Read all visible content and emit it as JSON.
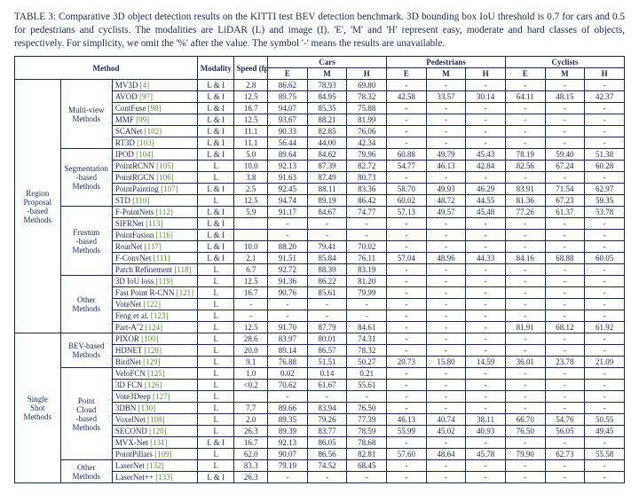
{
  "caption": "TABLE 3: Comparative 3D object detection results on the KITTI test BEV detection benchmark. 3D bounding box IoU threshold is 0.7 for cars and 0.5 for pedestrians and cyclists. The modalities are LiDAR (L) and image (I). 'E', 'M' and 'H' represent easy, moderate and hard classes of objects, respectively. For simplicity, we omit the '%' after the value. The symbol '-' means the results are unavailable.",
  "headers": {
    "method": "Method",
    "modality": "Modality",
    "speed": "Speed (fps)",
    "cars": "Cars",
    "ped": "Pedestrians",
    "cyc": "Cyclists",
    "e": "E",
    "m": "M",
    "h": "H"
  },
  "groups": [
    {
      "label": "Region Proposal -based Methods",
      "subs": [
        {
          "label": "Multi-view Methods",
          "rows": [
            {
              "name": "MV3D",
              "ref": "[4]",
              "mod": "L & I",
              "spd": "2.8",
              "cE": "86.62",
              "cM": "78.93",
              "cH": "69.80",
              "pE": "-",
              "pM": "-",
              "pH": "-",
              "yE": "-",
              "yM": "-",
              "yH": "-"
            },
            {
              "name": "AVOD",
              "ref": "[97]",
              "mod": "L & I",
              "spd": "12.5",
              "cE": "89.75",
              "cM": "84.95",
              "cH": "78.32",
              "pE": "42.58",
              "pM": "33.57",
              "pH": "30.14",
              "yE": "64.11",
              "yM": "48.15",
              "yH": "42.37"
            },
            {
              "name": "ContFuse",
              "ref": "[98]",
              "mod": "L & I",
              "spd": "16.7",
              "cE": "94.07",
              "cM": "85.35",
              "cH": "75.88",
              "pE": "-",
              "pM": "-",
              "pH": "-",
              "yE": "-",
              "yM": "-",
              "yH": "-"
            },
            {
              "name": "MMF",
              "ref": "[99]",
              "mod": "L & I",
              "spd": "12.5",
              "cE": "93.67",
              "cM": "88.21",
              "cH": "81.99",
              "pE": "-",
              "pM": "-",
              "pH": "-",
              "yE": "-",
              "yM": "-",
              "yH": "-"
            },
            {
              "name": "SCANet",
              "ref": "[102]",
              "mod": "L & I",
              "spd": "11.1",
              "cE": "90.33",
              "cM": "82.85",
              "cH": "76.06",
              "pE": "-",
              "pM": "-",
              "pH": "-",
              "yE": "-",
              "yM": "-",
              "yH": "-"
            },
            {
              "name": "RT3D",
              "ref": "[103]",
              "mod": "L & I",
              "spd": "11.1",
              "cE": "56.44",
              "cM": "44.00",
              "cH": "42.34",
              "pE": "-",
              "pM": "-",
              "pH": "-",
              "yE": "-",
              "yM": "-",
              "yH": "-"
            }
          ]
        },
        {
          "label": "Segmentation -based Methods",
          "rows": [
            {
              "name": "IPOD",
              "ref": "[104]",
              "mod": "L & I",
              "spd": "5.0",
              "cE": "89.64",
              "cM": "84.62",
              "cH": "79.96",
              "pE": "60.88",
              "pM": "49.79",
              "pH": "45.43",
              "yE": "78.19",
              "yM": "59.40",
              "yH": "51.38"
            },
            {
              "name": "PointRCNN",
              "ref": "[105]",
              "mod": "L",
              "spd": "10.0",
              "cE": "92.13",
              "cM": "87.39",
              "cH": "82.72",
              "pE": "54.77",
              "pM": "46.13",
              "pH": "42.84",
              "yE": "82.56",
              "yM": "67.24",
              "yH": "60.28"
            },
            {
              "name": "PointRGCN",
              "ref": "[106]",
              "mod": "L",
              "spd": "3.8",
              "cE": "91.63",
              "cM": "87.49",
              "cH": "80.73",
              "pE": "-",
              "pM": "-",
              "pH": "-",
              "yE": "-",
              "yM": "-",
              "yH": "-"
            },
            {
              "name": "PointPainting",
              "ref": "[107]",
              "mod": "L & I",
              "spd": "2.5",
              "cE": "92.45",
              "cM": "88.11",
              "cH": "83.36",
              "pE": "58.70",
              "pM": "49.93",
              "pH": "46.29",
              "yE": "83.91",
              "yM": "71.54",
              "yH": "62.97"
            },
            {
              "name": "STD",
              "ref": "[110]",
              "mod": "L",
              "spd": "12.5",
              "cE": "94.74",
              "cM": "89.19",
              "cH": "86.42",
              "pE": "60.02",
              "pM": "48.72",
              "pH": "44.55",
              "yE": "81.36",
              "yM": "67.23",
              "yH": "59.35"
            }
          ]
        },
        {
          "label": "Frustum -based Methods",
          "rows": [
            {
              "name": "F-PointNets",
              "ref": "[112]",
              "mod": "L & I",
              "spd": "5.9",
              "cE": "91.17",
              "cM": "84.67",
              "cH": "74.77",
              "pE": "57.13",
              "pM": "49.57",
              "pH": "45.48",
              "yE": "77.26",
              "yM": "61.37",
              "yH": "53.78"
            },
            {
              "name": "SIFRNet",
              "ref": "[113]",
              "mod": "L & I",
              "spd": "",
              "cE": "-",
              "cM": "-",
              "cH": "-",
              "pE": "-",
              "pM": "-",
              "pH": "-",
              "yE": "-",
              "yM": "-",
              "yH": "-"
            },
            {
              "name": "PointFusion",
              "ref": "[116]",
              "mod": "L & I",
              "spd": "",
              "cE": "-",
              "cM": "-",
              "cH": "-",
              "pE": "-",
              "pM": "-",
              "pH": "-",
              "yE": "-",
              "yM": "-",
              "yH": "-"
            },
            {
              "name": "RoarNet",
              "ref": "[117]",
              "mod": "L & I",
              "spd": "10.0",
              "cE": "88.20",
              "cM": "79.41",
              "cH": "70.02",
              "pE": "-",
              "pM": "-",
              "pH": "-",
              "yE": "-",
              "yM": "-",
              "yH": "-"
            },
            {
              "name": "F-ConvNet",
              "ref": "[111]",
              "mod": "L & I",
              "spd": "2.1",
              "cE": "91.51",
              "cM": "85.84",
              "cH": "76.11",
              "pE": "57.04",
              "pM": "48.96",
              "pH": "44.33",
              "yE": "84.16",
              "yM": "68.88",
              "yH": "60.05"
            },
            {
              "name": "Patch Refinement",
              "ref": "[118]",
              "mod": "L",
              "spd": "6.7",
              "cE": "92.72",
              "cM": "88.39",
              "cH": "83.19",
              "pE": "-",
              "pM": "-",
              "pH": "-",
              "yE": "-",
              "yM": "-",
              "yH": "-"
            }
          ]
        },
        {
          "label": "Other Methods",
          "rows": [
            {
              "name": "3D IoU loss",
              "ref": "[119]",
              "mod": "L",
              "spd": "12.5",
              "cE": "91.36",
              "cM": "86.22",
              "cH": "81.20",
              "pE": "-",
              "pM": "-",
              "pH": "-",
              "yE": "-",
              "yM": "-",
              "yH": "-"
            },
            {
              "name": "Fast Point R-CNN",
              "ref": "[121]",
              "mod": "L",
              "spd": "16.7",
              "cE": "90.76",
              "cM": "85.61",
              "cH": "79.99",
              "pE": "-",
              "pM": "-",
              "pH": "-",
              "yE": "-",
              "yM": "-",
              "yH": "-"
            },
            {
              "name": "VoteNet",
              "ref": "[122]",
              "mod": "L",
              "spd": "-",
              "cE": "-",
              "cM": "-",
              "cH": "-",
              "pE": "-",
              "pM": "-",
              "pH": "-",
              "yE": "-",
              "yM": "-",
              "yH": "-"
            },
            {
              "name": "Feng et al.",
              "ref": "[123]",
              "mod": "L",
              "spd": "-",
              "cE": "-",
              "cM": "-",
              "cH": "-",
              "pE": "-",
              "pM": "-",
              "pH": "-",
              "yE": "-",
              "yM": "-",
              "yH": "-"
            },
            {
              "name": "Part-Aˆ2",
              "ref": "[124]",
              "mod": "L",
              "spd": "12.5",
              "cE": "91.70",
              "cM": "87.79",
              "cH": "84.61",
              "pE": "-",
              "pM": "-",
              "pH": "-",
              "yE": "81.91",
              "yM": "68.12",
              "yH": "61.92"
            }
          ]
        }
      ]
    },
    {
      "label": "Single Shot Methods",
      "subs": [
        {
          "label": "BEV-based Methods",
          "rows": [
            {
              "name": "PIXOR",
              "ref": "[100]",
              "mod": "L",
              "spd": "28.6",
              "cE": "83.97",
              "cM": "80.01",
              "cH": "74.31",
              "pE": "-",
              "pM": "-",
              "pH": "-",
              "yE": "-",
              "yM": "-",
              "yH": "-"
            },
            {
              "name": "HDNET",
              "ref": "[128]",
              "mod": "L",
              "spd": "20.0",
              "cE": "89.14",
              "cM": "86.57",
              "cH": "78.32",
              "pE": "-",
              "pM": "-",
              "pH": "-",
              "yE": "-",
              "yM": "-",
              "yH": "-"
            },
            {
              "name": "BirdNet",
              "ref": "[129]",
              "mod": "L",
              "spd": "9.1",
              "cE": "76.88",
              "cM": "51.51",
              "cH": "50.27",
              "pE": "20.73",
              "pM": "15.80",
              "pH": "14.59",
              "yE": "36.01",
              "yM": "23.78",
              "yH": "21.09"
            }
          ]
        },
        {
          "label": "Point Cloud -based Methods",
          "rows": [
            {
              "name": "VeloFCN",
              "ref": "[125]",
              "mod": "L",
              "spd": "1.0",
              "cE": "0.02",
              "cM": "0.14",
              "cH": "0.21",
              "pE": "-",
              "pM": "-",
              "pH": "-",
              "yE": "-",
              "yM": "-",
              "yH": "-"
            },
            {
              "name": "3D FCN",
              "ref": "[126]",
              "mod": "L",
              "spd": "<0.2",
              "cE": "70.62",
              "cM": "61.67",
              "cH": "55.61",
              "pE": "-",
              "pM": "-",
              "pH": "-",
              "yE": "-",
              "yM": "-",
              "yH": "-"
            },
            {
              "name": "Vote3Deep",
              "ref": "[127]",
              "mod": "L",
              "spd": "",
              "cE": "-",
              "cM": "-",
              "cH": "-",
              "pE": "-",
              "pM": "-",
              "pH": "-",
              "yE": "-",
              "yM": "-",
              "yH": "-"
            },
            {
              "name": "3DBN",
              "ref": "[130]",
              "mod": "L",
              "spd": "7.7",
              "cE": "89.66",
              "cM": "83.94",
              "cH": "76.50",
              "pE": "-",
              "pM": "-",
              "pH": "-",
              "yE": "-",
              "yM": "-",
              "yH": "-"
            },
            {
              "name": "VoxelNet",
              "ref": "[108]",
              "mod": "L",
              "spd": "2.0",
              "cE": "89.35",
              "cM": "79.26",
              "cH": "77.39",
              "pE": "46.13",
              "pM": "40.74",
              "pH": "38.11",
              "yE": "66.70",
              "yM": "54.76",
              "yH": "50.55"
            },
            {
              "name": "SECOND",
              "ref": "[120]",
              "mod": "L",
              "spd": "26.3",
              "cE": "89.39",
              "cM": "83.77",
              "cH": "78.59",
              "pE": "55.99",
              "pM": "45.02",
              "pH": "40.93",
              "yE": "76.50",
              "yM": "56.05",
              "yH": "49.45"
            },
            {
              "name": "MVX-Net",
              "ref": "[131]",
              "mod": "L & I",
              "spd": "16.7",
              "cE": "92.13",
              "cM": "86.05",
              "cH": "78.68",
              "pE": "-",
              "pM": "-",
              "pH": "-",
              "yE": "-",
              "yM": "-",
              "yH": "-"
            },
            {
              "name": "PointPillars",
              "ref": "[109]",
              "mod": "L",
              "spd": "62.0",
              "cE": "90.07",
              "cM": "86.56",
              "cH": "82.81",
              "pE": "57.60",
              "pM": "48.64",
              "pH": "45.78",
              "yE": "79.90",
              "yM": "62.73",
              "yH": "55.58"
            }
          ]
        },
        {
          "label": "Other Methods",
          "rows": [
            {
              "name": "LaserNet",
              "ref": "[132]",
              "mod": "L",
              "spd": "83.3",
              "cE": "79.19",
              "cM": "74.52",
              "cH": "68.45",
              "pE": "-",
              "pM": "-",
              "pH": "-",
              "yE": "-",
              "yM": "-",
              "yH": "-"
            },
            {
              "name": "LaserNet++",
              "ref": "[133]",
              "mod": "L & I",
              "spd": "26.3",
              "cE": "-",
              "cM": "-",
              "cH": "-",
              "pE": "-",
              "pM": "-",
              "pH": "-",
              "yE": "-",
              "yM": "-",
              "yH": "-"
            }
          ]
        }
      ]
    }
  ]
}
